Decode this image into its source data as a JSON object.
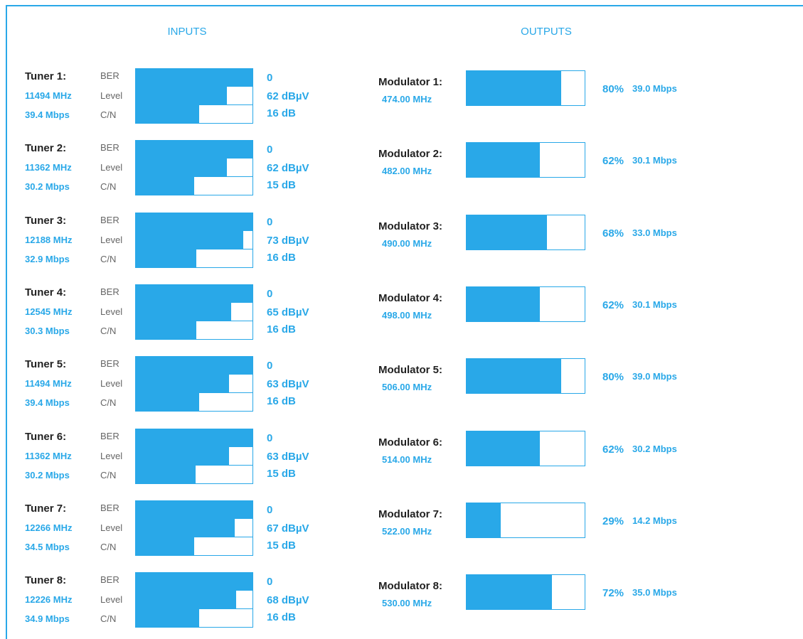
{
  "inputs_title": "INPUTS",
  "outputs_title": "OUTPUTS",
  "colors": {
    "accent": "#29a8e8",
    "label": "#666666",
    "name": "#222222"
  },
  "metric_labels": {
    "ber": "BER",
    "level": "Level",
    "cn": "C/N"
  },
  "tuners": [
    {
      "name": "Tuner 1:",
      "freq": "11494 MHz",
      "rate": "39.4 Mbps",
      "ber": "0",
      "level": "62 dBµV",
      "cn": "16 dB",
      "level_fill": 0.78,
      "cn_fill": 0.54
    },
    {
      "name": "Tuner 2:",
      "freq": "11362 MHz",
      "rate": "30.2 Mbps",
      "ber": "0",
      "level": "62 dBµV",
      "cn": "15 dB",
      "level_fill": 0.78,
      "cn_fill": 0.5
    },
    {
      "name": "Tuner 3:",
      "freq": "12188 MHz",
      "rate": "32.9 Mbps",
      "ber": "0",
      "level": "73 dBµV",
      "cn": "16 dB",
      "level_fill": 0.92,
      "cn_fill": 0.52
    },
    {
      "name": "Tuner 4:",
      "freq": "12545 MHz",
      "rate": "30.3 Mbps",
      "ber": "0",
      "level": "65 dBµV",
      "cn": "16 dB",
      "level_fill": 0.82,
      "cn_fill": 0.52
    },
    {
      "name": "Tuner 5:",
      "freq": "11494 MHz",
      "rate": "39.4 Mbps",
      "ber": "0",
      "level": "63 dBµV",
      "cn": "16 dB",
      "level_fill": 0.8,
      "cn_fill": 0.54
    },
    {
      "name": "Tuner 6:",
      "freq": "11362 MHz",
      "rate": "30.2 Mbps",
      "ber": "0",
      "level": "63 dBµV",
      "cn": "15 dB",
      "level_fill": 0.8,
      "cn_fill": 0.51
    },
    {
      "name": "Tuner 7:",
      "freq": "12266 MHz",
      "rate": "34.5 Mbps",
      "ber": "0",
      "level": "67 dBµV",
      "cn": "15 dB",
      "level_fill": 0.85,
      "cn_fill": 0.5
    },
    {
      "name": "Tuner 8:",
      "freq": "12226 MHz",
      "rate": "34.9 Mbps",
      "ber": "0",
      "level": "68 dBµV",
      "cn": "16 dB",
      "level_fill": 0.86,
      "cn_fill": 0.54
    }
  ],
  "modulators": [
    {
      "name": "Modulator 1:",
      "freq": "474.00 MHz",
      "pct": "80%",
      "rate": "39.0 Mbps",
      "fill": 0.8
    },
    {
      "name": "Modulator 2:",
      "freq": "482.00 MHz",
      "pct": "62%",
      "rate": "30.1 Mbps",
      "fill": 0.62
    },
    {
      "name": "Modulator 3:",
      "freq": "490.00 MHz",
      "pct": "68%",
      "rate": "33.0 Mbps",
      "fill": 0.68
    },
    {
      "name": "Modulator 4:",
      "freq": "498.00 MHz",
      "pct": "62%",
      "rate": "30.1 Mbps",
      "fill": 0.62
    },
    {
      "name": "Modulator 5:",
      "freq": "506.00 MHz",
      "pct": "80%",
      "rate": "39.0 Mbps",
      "fill": 0.8
    },
    {
      "name": "Modulator 6:",
      "freq": "514.00 MHz",
      "pct": "62%",
      "rate": "30.2 Mbps",
      "fill": 0.62
    },
    {
      "name": "Modulator 7:",
      "freq": "522.00 MHz",
      "pct": "29%",
      "rate": "14.2 Mbps",
      "fill": 0.29
    },
    {
      "name": "Modulator 8:",
      "freq": "530.00 MHz",
      "pct": "72%",
      "rate": "35.0 Mbps",
      "fill": 0.72
    }
  ]
}
